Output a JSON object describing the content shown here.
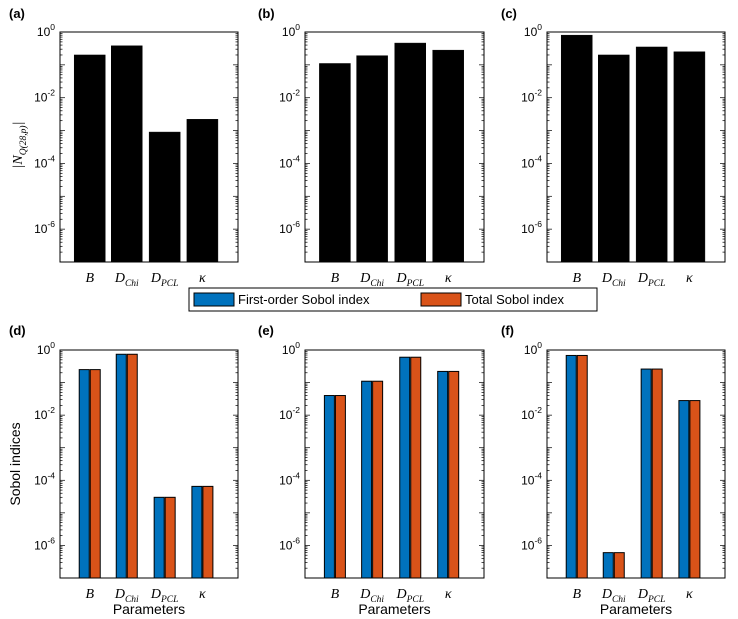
{
  "legend": {
    "items": [
      {
        "label": "First-order Sobol index",
        "color": "#0072BD"
      },
      {
        "label": "Total Sobol index",
        "color": "#D95319"
      }
    ]
  },
  "colors": {
    "black_bar": "#000000",
    "first_order": "#0072BD",
    "total": "#D95319"
  },
  "chart_data": [
    {
      "panel_label": "(a)",
      "type": "bar",
      "scale": "log",
      "ylim": [
        1e-07,
        1
      ],
      "yticks": [
        1e-06,
        0.0001,
        0.01,
        1
      ],
      "ytick_labels": [
        {
          "b": "10",
          "e": "-6"
        },
        {
          "b": "10",
          "e": "-4"
        },
        {
          "b": "10",
          "e": "-2"
        },
        {
          "b": "10",
          "e": "0"
        }
      ],
      "ylabel": {
        "prefix": "|N",
        "sub": "Q(28,p)",
        "suffix": "|"
      },
      "xlabel": "",
      "categories": [
        {
          "b": "B",
          "s": ""
        },
        {
          "b": "D",
          "s": "Chi"
        },
        {
          "b": "D",
          "s": "PCL"
        },
        {
          "b": "κ",
          "s": ""
        }
      ],
      "series": [
        {
          "name": "|N|",
          "color": "#000000",
          "values": [
            0.2,
            0.38,
            0.0009,
            0.0022
          ]
        }
      ]
    },
    {
      "panel_label": "(b)",
      "type": "bar",
      "scale": "log",
      "ylim": [
        1e-07,
        1
      ],
      "yticks": [
        1e-06,
        0.0001,
        0.01,
        1
      ],
      "ytick_labels": [
        {
          "b": "10",
          "e": "-6"
        },
        {
          "b": "10",
          "e": "-4"
        },
        {
          "b": "10",
          "e": "-2"
        },
        {
          "b": "10",
          "e": "0"
        }
      ],
      "xlabel": "",
      "categories": [
        {
          "b": "B",
          "s": ""
        },
        {
          "b": "D",
          "s": "Chi"
        },
        {
          "b": "D",
          "s": "PCL"
        },
        {
          "b": "κ",
          "s": ""
        }
      ],
      "series": [
        {
          "name": "|N|",
          "color": "#000000",
          "values": [
            0.11,
            0.19,
            0.46,
            0.28
          ]
        }
      ]
    },
    {
      "panel_label": "(c)",
      "type": "bar",
      "scale": "log",
      "ylim": [
        1e-07,
        1
      ],
      "yticks": [
        1e-06,
        0.0001,
        0.01,
        1
      ],
      "ytick_labels": [
        {
          "b": "10",
          "e": "-6"
        },
        {
          "b": "10",
          "e": "-4"
        },
        {
          "b": "10",
          "e": "-2"
        },
        {
          "b": "10",
          "e": "0"
        }
      ],
      "xlabel": "",
      "categories": [
        {
          "b": "B",
          "s": ""
        },
        {
          "b": "D",
          "s": "Chi"
        },
        {
          "b": "D",
          "s": "PCL"
        },
        {
          "b": "κ",
          "s": ""
        }
      ],
      "series": [
        {
          "name": "|N|",
          "color": "#000000",
          "values": [
            0.8,
            0.2,
            0.35,
            0.25
          ]
        }
      ]
    },
    {
      "panel_label": "(d)",
      "type": "bar",
      "scale": "log",
      "ylim": [
        1e-07,
        1
      ],
      "yticks": [
        1e-06,
        0.0001,
        0.01,
        1
      ],
      "ytick_labels": [
        {
          "b": "10",
          "e": "-6"
        },
        {
          "b": "10",
          "e": "-4"
        },
        {
          "b": "10",
          "e": "-2"
        },
        {
          "b": "10",
          "e": "0"
        }
      ],
      "ylabel_text": "Sobol indices",
      "xlabel": "Parameters",
      "categories": [
        {
          "b": "B",
          "s": ""
        },
        {
          "b": "D",
          "s": "Chi"
        },
        {
          "b": "D",
          "s": "PCL"
        },
        {
          "b": "κ",
          "s": ""
        }
      ],
      "series": [
        {
          "name": "First-order Sobol index",
          "color": "#0072BD",
          "values": [
            0.25,
            0.74,
            3e-05,
            6.5e-05
          ]
        },
        {
          "name": "Total Sobol index",
          "color": "#D95319",
          "values": [
            0.25,
            0.74,
            3e-05,
            6.5e-05
          ]
        }
      ]
    },
    {
      "panel_label": "(e)",
      "type": "bar",
      "scale": "log",
      "ylim": [
        1e-07,
        1
      ],
      "yticks": [
        1e-06,
        0.0001,
        0.01,
        1
      ],
      "ytick_labels": [
        {
          "b": "10",
          "e": "-6"
        },
        {
          "b": "10",
          "e": "-4"
        },
        {
          "b": "10",
          "e": "-2"
        },
        {
          "b": "10",
          "e": "0"
        }
      ],
      "xlabel": "Parameters",
      "categories": [
        {
          "b": "B",
          "s": ""
        },
        {
          "b": "D",
          "s": "Chi"
        },
        {
          "b": "D",
          "s": "PCL"
        },
        {
          "b": "κ",
          "s": ""
        }
      ],
      "series": [
        {
          "name": "First-order Sobol index",
          "color": "#0072BD",
          "values": [
            0.04,
            0.11,
            0.6,
            0.22
          ]
        },
        {
          "name": "Total Sobol index",
          "color": "#D95319",
          "values": [
            0.04,
            0.11,
            0.6,
            0.22
          ]
        }
      ]
    },
    {
      "panel_label": "(f)",
      "type": "bar",
      "scale": "log",
      "ylim": [
        1e-07,
        1
      ],
      "yticks": [
        1e-06,
        0.0001,
        0.01,
        1
      ],
      "ytick_labels": [
        {
          "b": "10",
          "e": "-6"
        },
        {
          "b": "10",
          "e": "-4"
        },
        {
          "b": "10",
          "e": "-2"
        },
        {
          "b": "10",
          "e": "0"
        }
      ],
      "xlabel": "Parameters",
      "categories": [
        {
          "b": "B",
          "s": ""
        },
        {
          "b": "D",
          "s": "Chi"
        },
        {
          "b": "D",
          "s": "PCL"
        },
        {
          "b": "κ",
          "s": ""
        }
      ],
      "series": [
        {
          "name": "First-order Sobol index",
          "color": "#0072BD",
          "values": [
            0.68,
            6e-07,
            0.26,
            0.028
          ]
        },
        {
          "name": "Total Sobol index",
          "color": "#D95319",
          "values": [
            0.68,
            6e-07,
            0.26,
            0.028
          ]
        }
      ]
    }
  ]
}
